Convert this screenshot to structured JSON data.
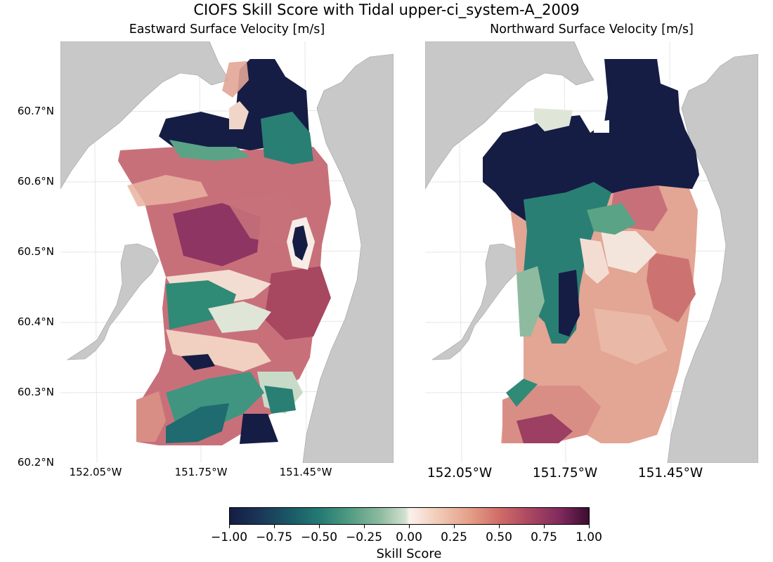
{
  "title": "CIOFS Skill Score with Tidal upper-ci_system-A_2009",
  "panels": [
    {
      "title": "Eastward Surface Velocity [m/s]"
    },
    {
      "title": "Northward Surface Velocity [m/s]"
    }
  ],
  "y_ticks": [
    "60.7°N",
    "60.6°N",
    "60.5°N",
    "60.4°N",
    "60.3°N",
    "60.2°N"
  ],
  "x_ticks": [
    "152.05°W",
    "151.75°W",
    "151.45°W"
  ],
  "colorbar": {
    "label": "Skill Score",
    "ticks": [
      "−1.00",
      "−0.75",
      "−0.50",
      "−0.25",
      "0.00",
      "0.25",
      "0.50",
      "0.75",
      "1.00"
    ],
    "range": [
      -1.0,
      1.0
    ],
    "colormap": "curl"
  },
  "colors": {
    "land": "#c8c8c8",
    "water": "#ffffff",
    "strong_negative": "#151d44",
    "negative": "#237a73",
    "neutral": "#fbf1ec",
    "positive": "#d06d68",
    "strong_positive": "#3c0c2f"
  }
}
